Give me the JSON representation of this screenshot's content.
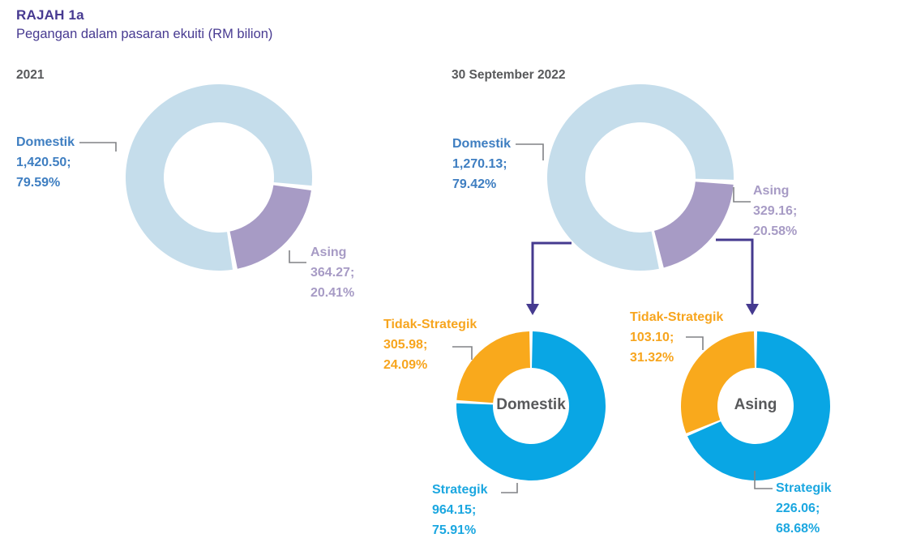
{
  "header": {
    "title": "RAJAH 1a",
    "subtitle": "Pegangan dalam pasaran ekuiti (RM bilion)"
  },
  "colors": {
    "title": "#473A91",
    "heading": "#58595B",
    "blue": "#3E7EC1",
    "lavender": "#A79BC5",
    "orange": "#F7A51E",
    "cyan": "#1BA7E0",
    "leader": "#808285",
    "arrow": "#453A8F"
  },
  "chart_data": [
    {
      "type": "pie",
      "variant": "donut",
      "title": "2021",
      "unit": "RM bilion",
      "start_angle": 170,
      "segments": [
        {
          "label": "Domestik",
          "value": 1420.5,
          "pct": 79.59,
          "color": "#C5DDEB"
        },
        {
          "label": "Asing",
          "value": 364.27,
          "pct": 20.41,
          "color": "#A79BC5"
        }
      ]
    },
    {
      "type": "pie",
      "variant": "donut",
      "title": "30 September 2022",
      "unit": "RM bilion",
      "start_angle": 167,
      "segments": [
        {
          "label": "Domestik",
          "value": 1270.13,
          "pct": 79.42,
          "color": "#C5DDEB"
        },
        {
          "label": "Asing",
          "value": 329.16,
          "pct": 20.58,
          "color": "#A79BC5"
        }
      ]
    },
    {
      "type": "pie",
      "variant": "donut",
      "title": "Domestik",
      "unit": "RM bilion",
      "start_angle": 0,
      "segments": [
        {
          "label": "Strategik",
          "value": 964.15,
          "pct": 75.91,
          "color": "#09A6E4"
        },
        {
          "label": "Tidak-Strategik",
          "value": 305.98,
          "pct": 24.09,
          "color": "#F9A91C"
        }
      ]
    },
    {
      "type": "pie",
      "variant": "donut",
      "title": "Asing",
      "unit": "RM bilion",
      "start_angle": 0,
      "segments": [
        {
          "label": "Strategik",
          "value": 226.06,
          "pct": 68.68,
          "color": "#09A6E4"
        },
        {
          "label": "Tidak-Strategik",
          "value": 103.1,
          "pct": 31.32,
          "color": "#F9A91C"
        }
      ]
    }
  ],
  "labels": {
    "y2021_domestik": {
      "name": "Domestik",
      "value": "1,420.50;",
      "pct": "79.59%"
    },
    "y2021_asing": {
      "name": "Asing",
      "value": "364.27;",
      "pct": "20.41%"
    },
    "y2022_domestik": {
      "name": "Domestik",
      "value": "1,270.13;",
      "pct": "79.42%"
    },
    "y2022_asing": {
      "name": "Asing",
      "value": "329.16;",
      "pct": "20.58%"
    },
    "domestik_tidak_strategik": {
      "name": "Tidak-Strategik",
      "value": "305.98;",
      "pct": "24.09%"
    },
    "domestik_strategik": {
      "name": "Strategik",
      "value": "964.15;",
      "pct": "75.91%"
    },
    "asing_tidak_strategik": {
      "name": "Tidak-Strategik",
      "value": "103.10;",
      "pct": "31.32%"
    },
    "asing_strategik": {
      "name": "Strategik",
      "value": "226.06;",
      "pct": "68.68%"
    }
  }
}
